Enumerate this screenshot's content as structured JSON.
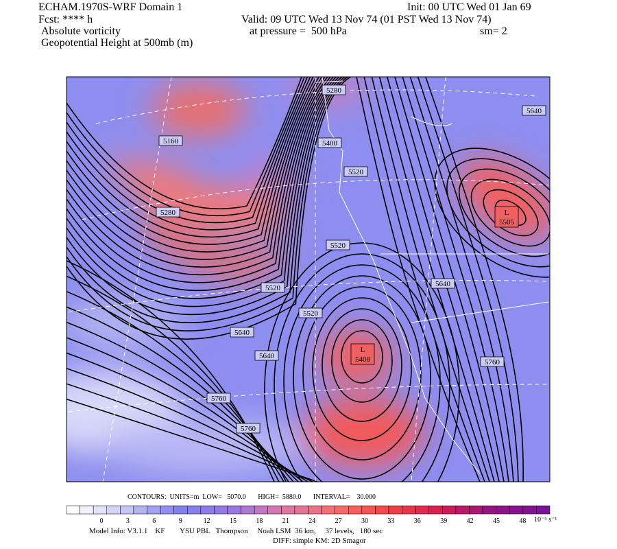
{
  "header": {
    "model": "ECHAM.1970S-WRF Domain 1",
    "init": "Init: 00 UTC Wed 01 Jan 69",
    "fcst": "Fcst: **** h",
    "valid": "Valid: 09 UTC Wed 13 Nov 74 (01 PST Wed 13 Nov 74)",
    "field1": "Absolute vorticity",
    "pressure": "at pressure =  500 hPa",
    "sm": "sm= 2",
    "field2": "Geopotential Height at 500mb (m)"
  },
  "map": {
    "contour_labels": [
      "5280",
      "5160",
      "5400",
      "5520",
      "5640",
      "5280",
      "5520",
      "5520",
      "5640",
      "5520",
      "5640",
      "5640",
      "5760",
      "5760",
      "5760"
    ],
    "lows": [
      {
        "symbol": "L",
        "value": "5505"
      },
      {
        "symbol": "L",
        "value": "5408"
      }
    ]
  },
  "footer": {
    "contours": "CONTOURS:  UNITS=m  LOW=   5070.0       HIGH=  5880.0       INTERVAL=    30.000",
    "colorbar_ticks": [
      "0",
      "3",
      "6",
      "9",
      "12",
      "15",
      "18",
      "21",
      "24",
      "27",
      "30",
      "33",
      "36",
      "39",
      "42",
      "45",
      "48"
    ],
    "colorbar_units": "10⁻⁵ s⁻¹",
    "model_info": "Model Info: V3.1.1    KF        YSU PBL   Thompson     Noah LSM  36 km,     37 levels,   180 sec",
    "diff": "DIFF: simple KM: 2D Smagor"
  }
}
